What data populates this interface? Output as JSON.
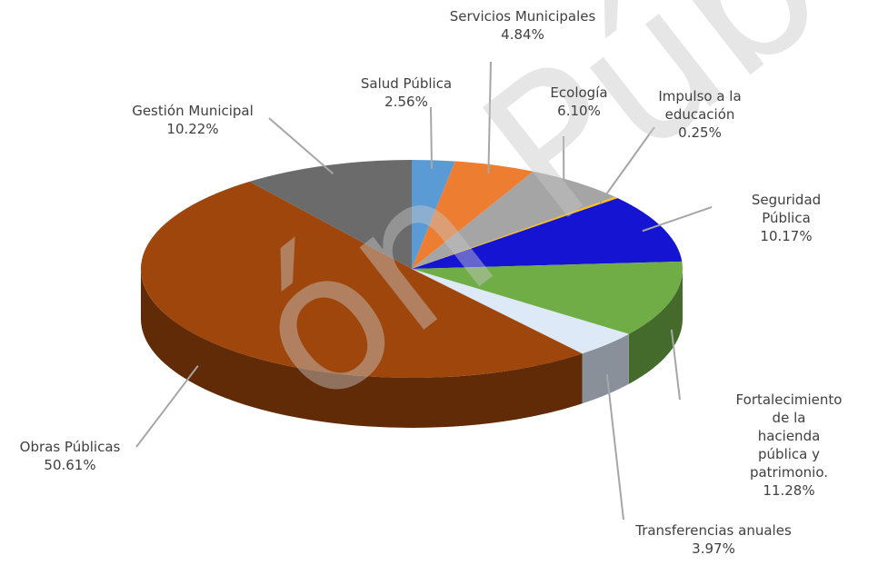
{
  "chart_data": {
    "type": "pie3d",
    "categories": [
      "Salud Pública",
      "Servicios Municipales",
      "Ecología",
      "Impulso a la\neducación",
      "Seguridad Pública",
      "Fortalecimiento de la\nhacienda pública y\npatrimonio.",
      "Transferencias anuales",
      "Obras Públicas",
      "Gestión Municipal"
    ],
    "values": [
      2.56,
      4.84,
      6.1,
      0.25,
      10.17,
      11.28,
      3.97,
      50.61,
      10.22
    ],
    "value_labels": [
      "2.56%",
      "4.84%",
      "6.10%",
      "0.25%",
      "10.17%",
      "11.28%",
      "3.97%",
      "50.61%",
      "10.22%"
    ],
    "colors": [
      "#5b9bd5",
      "#ed7d31",
      "#a5a5a5",
      "#ffc000",
      "#1414d2",
      "#70ad47",
      "#dde9f6",
      "#9e460b",
      "#6b6b6b"
    ],
    "watermark": "ón Públic"
  }
}
